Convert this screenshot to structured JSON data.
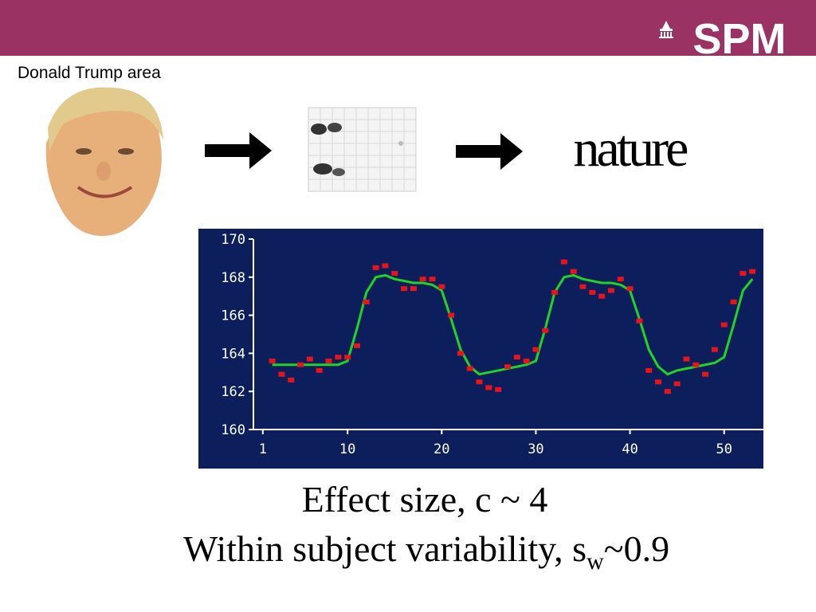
{
  "header": {
    "logo": "SPM"
  },
  "caption": "Donald Trump area",
  "journal": "nature",
  "chart_data": {
    "type": "scatter",
    "background": "#0c1f5c",
    "axis_color": "#ffffff",
    "x": [
      2,
      3,
      4,
      5,
      6,
      7,
      8,
      9,
      10,
      11,
      12,
      13,
      14,
      15,
      16,
      17,
      18,
      19,
      20,
      21,
      22,
      23,
      24,
      25,
      26,
      27,
      28,
      29,
      30,
      31,
      32,
      33,
      34,
      35,
      36,
      37,
      38,
      39,
      40,
      41,
      42,
      43,
      44,
      45,
      46,
      47,
      48,
      49,
      50,
      51,
      52,
      53
    ],
    "series": [
      {
        "mode": "markers",
        "color": "#e8141c",
        "values": [
          163.6,
          162.9,
          162.6,
          163.4,
          163.7,
          163.1,
          163.6,
          163.8,
          163.8,
          164.4,
          166.7,
          168.5,
          168.6,
          168.2,
          167.4,
          167.4,
          167.9,
          167.9,
          167.5,
          166.0,
          164.0,
          163.2,
          162.5,
          162.2,
          162.1,
          163.3,
          163.8,
          163.6,
          164.2,
          165.2,
          167.2,
          168.8,
          168.3,
          167.5,
          167.2,
          167.0,
          167.3,
          167.9,
          167.4,
          165.7,
          163.1,
          162.5,
          162.0,
          162.4,
          163.7,
          163.4,
          162.9,
          164.2,
          165.5,
          166.7,
          168.2,
          168.3
        ]
      },
      {
        "mode": "line",
        "color": "#22d422",
        "values": [
          163.4,
          163.4,
          163.4,
          163.4,
          163.4,
          163.4,
          163.4,
          163.4,
          163.6,
          165.3,
          167.2,
          168.0,
          168.1,
          167.9,
          167.8,
          167.7,
          167.7,
          167.6,
          167.3,
          165.8,
          164.2,
          163.3,
          162.9,
          163.0,
          163.1,
          163.2,
          163.3,
          163.4,
          163.6,
          165.3,
          167.2,
          168.0,
          168.1,
          167.9,
          167.8,
          167.7,
          167.7,
          167.6,
          167.3,
          165.8,
          164.2,
          163.3,
          162.9,
          163.1,
          163.2,
          163.3,
          163.4,
          163.5,
          163.8,
          165.5,
          167.3,
          167.9
        ]
      }
    ],
    "xlim": [
      0,
      54
    ],
    "ylim": [
      160,
      170
    ],
    "xticks": [
      1,
      10,
      20,
      30,
      40,
      50
    ],
    "yticks": [
      160,
      162,
      164,
      166,
      168,
      170
    ]
  },
  "footer": {
    "line1": "Effect size, c ~ 4",
    "line2": {
      "text": "Within subject variability, s",
      "subscript": "w",
      "tail": "~0.9"
    }
  }
}
